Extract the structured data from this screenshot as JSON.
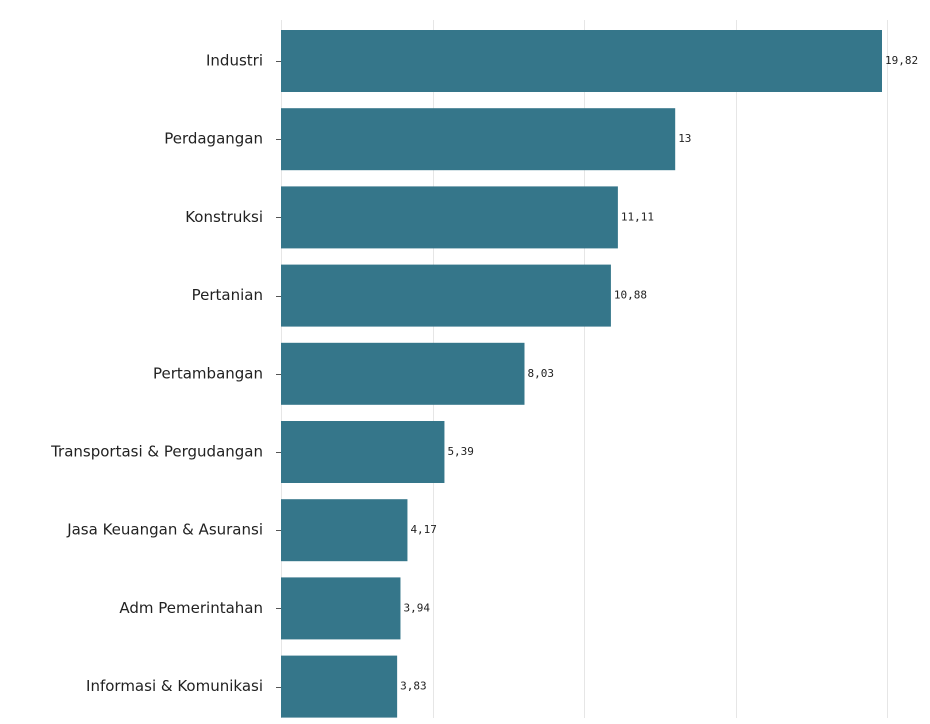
{
  "chart_data": {
    "type": "bar",
    "orientation": "horizontal",
    "title": "",
    "xlabel": "",
    "ylabel": "",
    "categories": [
      "Industri",
      "Perdagangan",
      "Konstruksi",
      "Pertanian",
      "Pertambangan",
      "Transportasi & Pergudangan",
      "Jasa Keuangan & Asuransi",
      "Adm Pemerintahan",
      "Informasi & Komunikasi"
    ],
    "values": [
      19.82,
      13,
      11.11,
      10.88,
      8.03,
      5.39,
      4.17,
      3.94,
      3.83
    ],
    "value_labels": [
      "19,82",
      "13",
      "11,11",
      "10,88",
      "8,03",
      "5,39",
      "4,17",
      "3,94",
      "3,83"
    ],
    "xlim": [
      0,
      20
    ],
    "gridlines_at": [
      0,
      5,
      10,
      15,
      20
    ],
    "grid": true,
    "legend": "none",
    "bar_color": "#35768a"
  }
}
